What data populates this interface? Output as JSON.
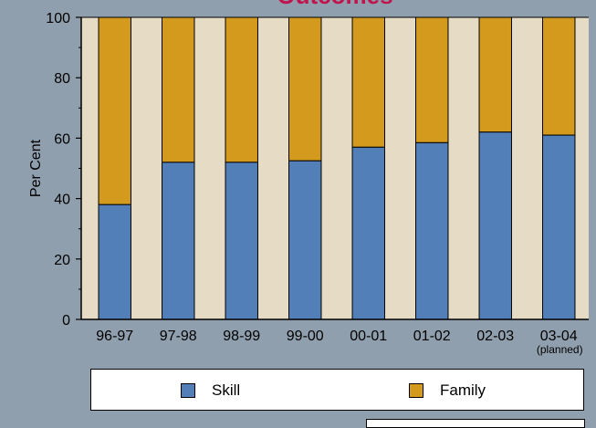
{
  "title": "Outcomes",
  "colors": {
    "skill": "#527fb8",
    "family": "#d39a1e",
    "stripe": "#e6dcc6",
    "title": "#c0144c",
    "background": "#8f9fae"
  },
  "legend": {
    "skill_label": "Skill",
    "family_label": "Family"
  },
  "chart_data": {
    "type": "bar",
    "stacked": true,
    "title": "Outcomes",
    "ylabel": "Per Cent",
    "xlabel": "",
    "ylim": [
      0,
      100
    ],
    "yticks": [
      0,
      20,
      40,
      60,
      80,
      100
    ],
    "categories": [
      "96-97",
      "97-98",
      "98-99",
      "99-00",
      "00-01",
      "01-02",
      "02-03",
      "03-04"
    ],
    "category_notes": [
      "",
      "",
      "",
      "",
      "",
      "",
      "",
      "(planned)"
    ],
    "series": [
      {
        "name": "Skill",
        "values": [
          38,
          52,
          52,
          52.5,
          57,
          58.5,
          62,
          61
        ]
      },
      {
        "name": "Family",
        "values": [
          62,
          48,
          48,
          47.5,
          43,
          41.5,
          38,
          39
        ]
      }
    ],
    "grid": false,
    "legend_position": "bottom"
  }
}
